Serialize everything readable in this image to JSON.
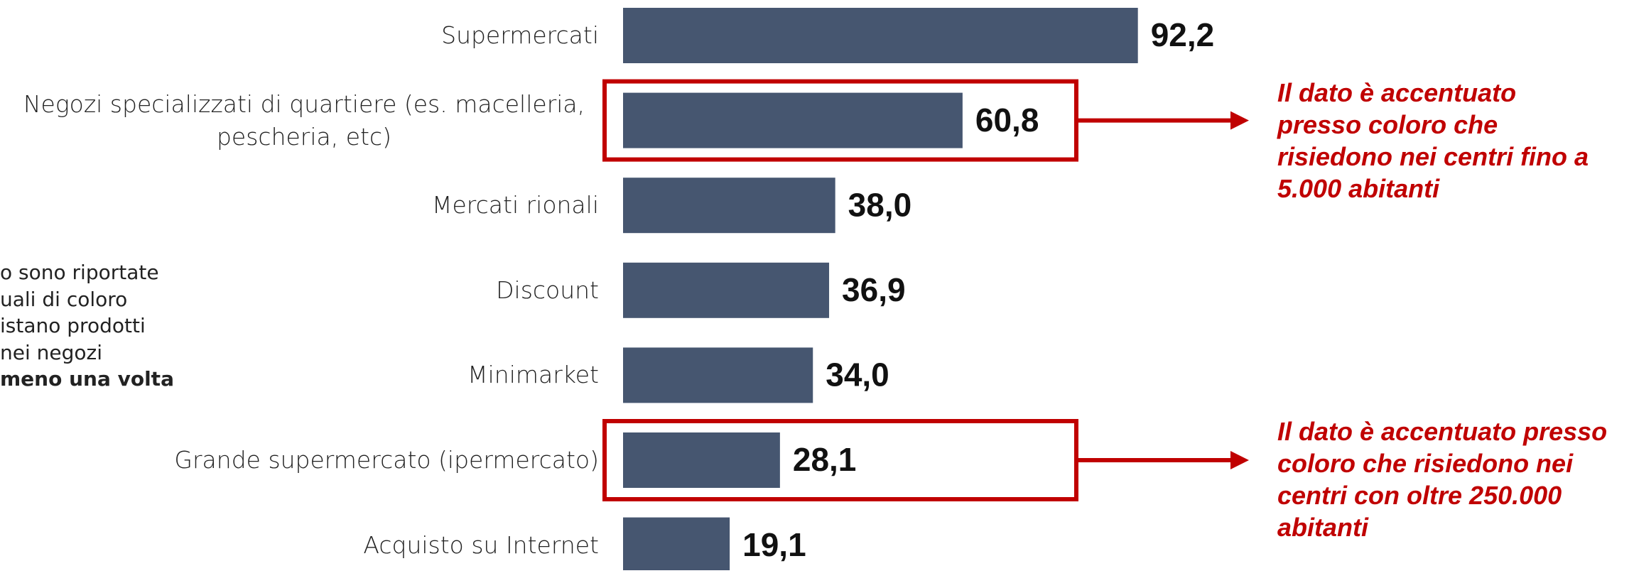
{
  "chart_data": {
    "type": "bar",
    "orientation": "horizontal",
    "categories": [
      "Supermercati",
      "Negozi specializzati di quartiere (es. macelleria, pescheria, etc)",
      "Mercati rionali",
      "Discount",
      "Minimarket",
      "Grande supermercato (ipermercato)",
      "Acquisto su Internet"
    ],
    "values": [
      92.2,
      60.8,
      38.0,
      36.9,
      34.0,
      28.1,
      19.1
    ],
    "value_labels": [
      "92,2",
      "60,8",
      "38,0",
      "36,9",
      "34,0",
      "28,1",
      "19,1"
    ],
    "color": "#465670",
    "xlim": [
      0,
      100
    ],
    "annotations": [
      {
        "lines": [
          "Il dato è accentuato",
          "presso coloro che",
          "risiedono nei centri fino a",
          "5.000 abitanti"
        ],
        "color": "#c00000"
      },
      {
        "lines": [
          "Il dato è accentuato presso",
          "coloro che risiedono nei",
          "centri con oltre 250.000",
          "abitanti"
        ],
        "color": "#c00000"
      }
    ],
    "note": {
      "lines": [
        "o sono riportate",
        "uali di coloro",
        "istano prodotti",
        "nei negozi"
      ],
      "bold_line": "meno una volta"
    }
  }
}
